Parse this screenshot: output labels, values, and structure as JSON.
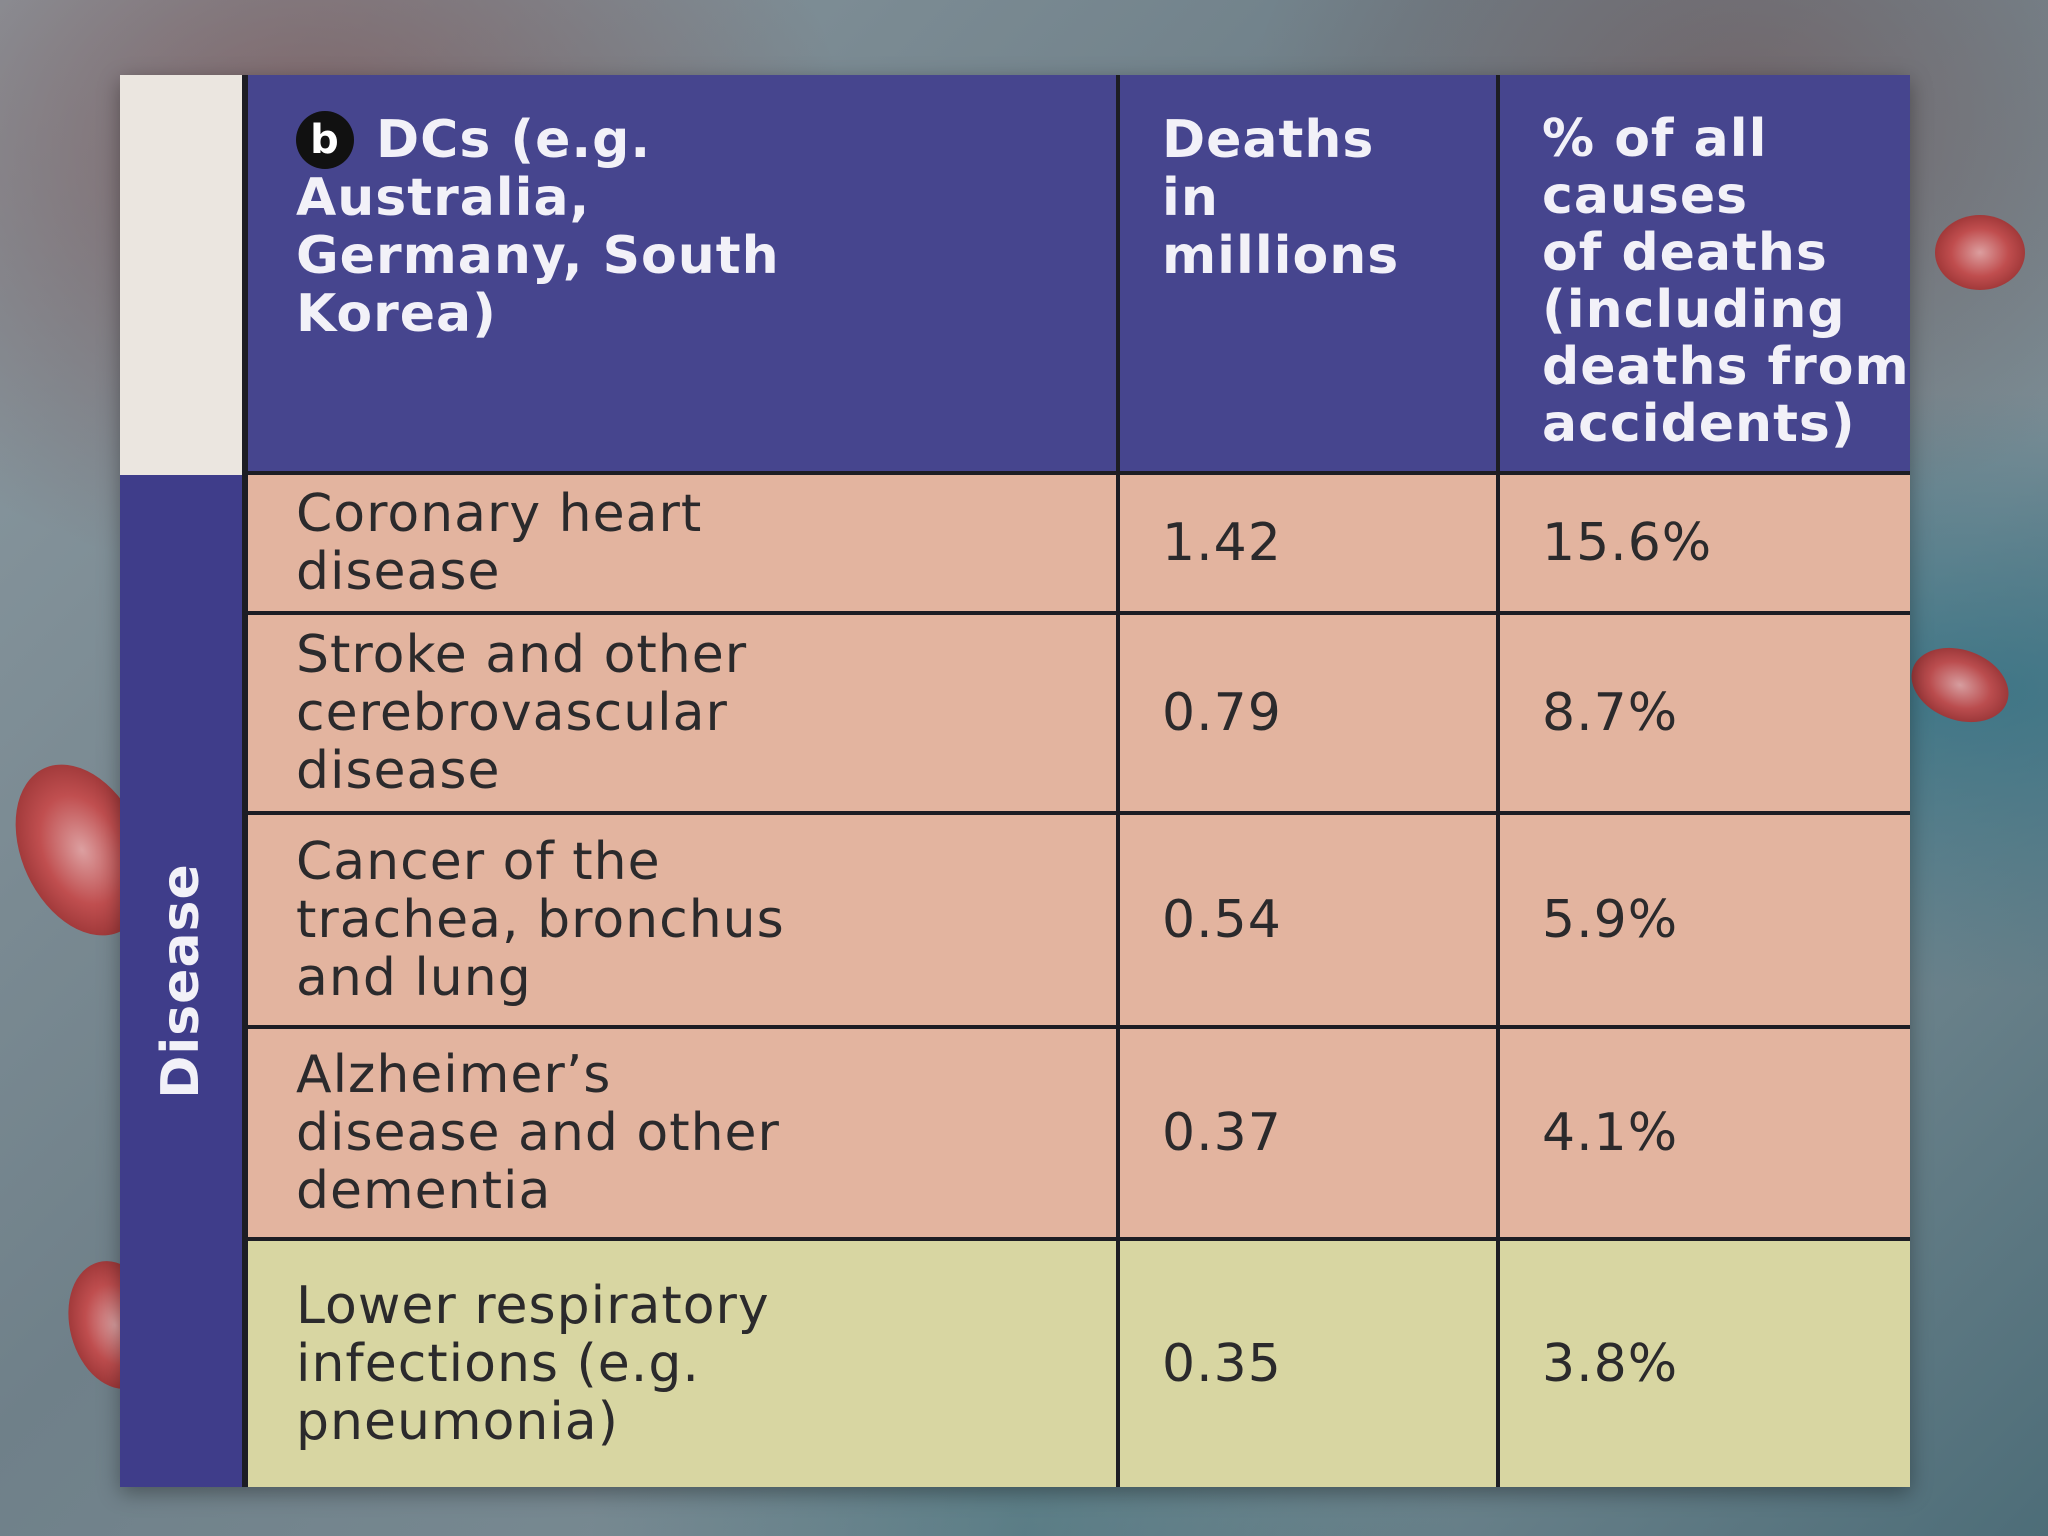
{
  "table": {
    "badge": "b",
    "header": {
      "col1_line1": "DCs (e.g.",
      "col1_rest": "Australia,\nGermany, South\nKorea)",
      "col2": "Deaths\nin\nmillions",
      "col3": "% of all\ncauses\nof deaths\n(including\ndeaths from\naccidents)"
    },
    "side_label": "Disease",
    "rows": [
      {
        "disease": "Coronary heart\ndisease",
        "deaths": "1.42",
        "percent": "15.6%"
      },
      {
        "disease": "Stroke and other\ncerebrovascular\ndisease",
        "deaths": "0.79",
        "percent": "8.7%"
      },
      {
        "disease": "Cancer of the\ntrachea, bronchus\nand lung",
        "deaths": "0.54",
        "percent": "5.9%"
      },
      {
        "disease": "Alzheimer’s\ndisease and other\ndementia",
        "deaths": "0.37",
        "percent": "4.1%"
      },
      {
        "disease": "Lower respiratory\ninfections (e.g.\npneumonia)",
        "deaths": "0.35",
        "percent": "3.8%"
      }
    ]
  },
  "colors": {
    "header": "#46458e",
    "disease_rows": "#e3b49f",
    "infection_row": "#d8d6a2"
  }
}
